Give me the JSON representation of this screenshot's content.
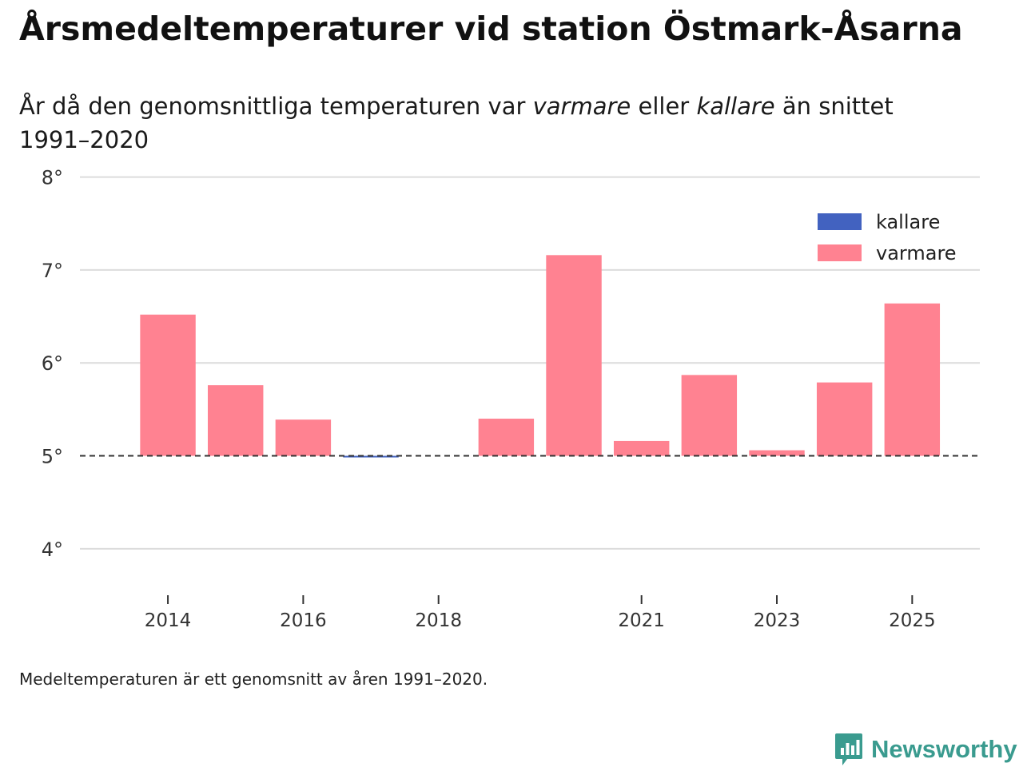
{
  "header": {
    "title": "Årsmedeltemperaturer vid station Östmark-Åsarna",
    "subtitle_pre": "År då den genomsnittliga temperaturen var ",
    "subtitle_warm": "varmare",
    "subtitle_mid": " eller ",
    "subtitle_cold": "kallare",
    "subtitle_post": " än snittet 1991–2020"
  },
  "footer": {
    "note": "Medeltemperaturen är ett genomsnitt av åren 1991–2020.",
    "brand": "Newsworthy"
  },
  "colors": {
    "warm": "#ff8291",
    "cold": "#4262c0",
    "grid": "#dcdcdc",
    "baseline": "#333333",
    "axis_text": "#333333",
    "brand": "#3a9b8f"
  },
  "chart_data": {
    "type": "bar",
    "baseline": 5.0,
    "ylim": [
      3.5,
      8.1
    ],
    "yticks": [
      4,
      5,
      6,
      7,
      8
    ],
    "ytick_labels": [
      "4°",
      "5°",
      "6°",
      "7°",
      "8°"
    ],
    "xlim": [
      2012.7,
      2026.0
    ],
    "xticks": [
      2014,
      2016,
      2018,
      2021,
      2023,
      2025
    ],
    "xtick_labels": [
      "2014",
      "2016",
      "2018",
      "2021",
      "2023",
      "2025"
    ],
    "series": [
      {
        "name": "kallare",
        "color": "#4262c0"
      },
      {
        "name": "varmare",
        "color": "#ff8291"
      }
    ],
    "legend_position": "top-right",
    "bars": [
      {
        "year": 2014,
        "value": 6.52,
        "series": "varmare"
      },
      {
        "year": 2015,
        "value": 5.76,
        "series": "varmare"
      },
      {
        "year": 2016,
        "value": 5.39,
        "series": "varmare"
      },
      {
        "year": 2017,
        "value": 4.99,
        "series": "kallare"
      },
      {
        "year": 2019,
        "value": 5.4,
        "series": "varmare"
      },
      {
        "year": 2020,
        "value": 7.16,
        "series": "varmare"
      },
      {
        "year": 2021,
        "value": 5.16,
        "series": "varmare"
      },
      {
        "year": 2022,
        "value": 5.87,
        "series": "varmare"
      },
      {
        "year": 2023,
        "value": 5.06,
        "series": "varmare"
      },
      {
        "year": 2024,
        "value": 5.79,
        "series": "varmare"
      },
      {
        "year": 2025,
        "value": 6.64,
        "series": "varmare"
      }
    ]
  }
}
